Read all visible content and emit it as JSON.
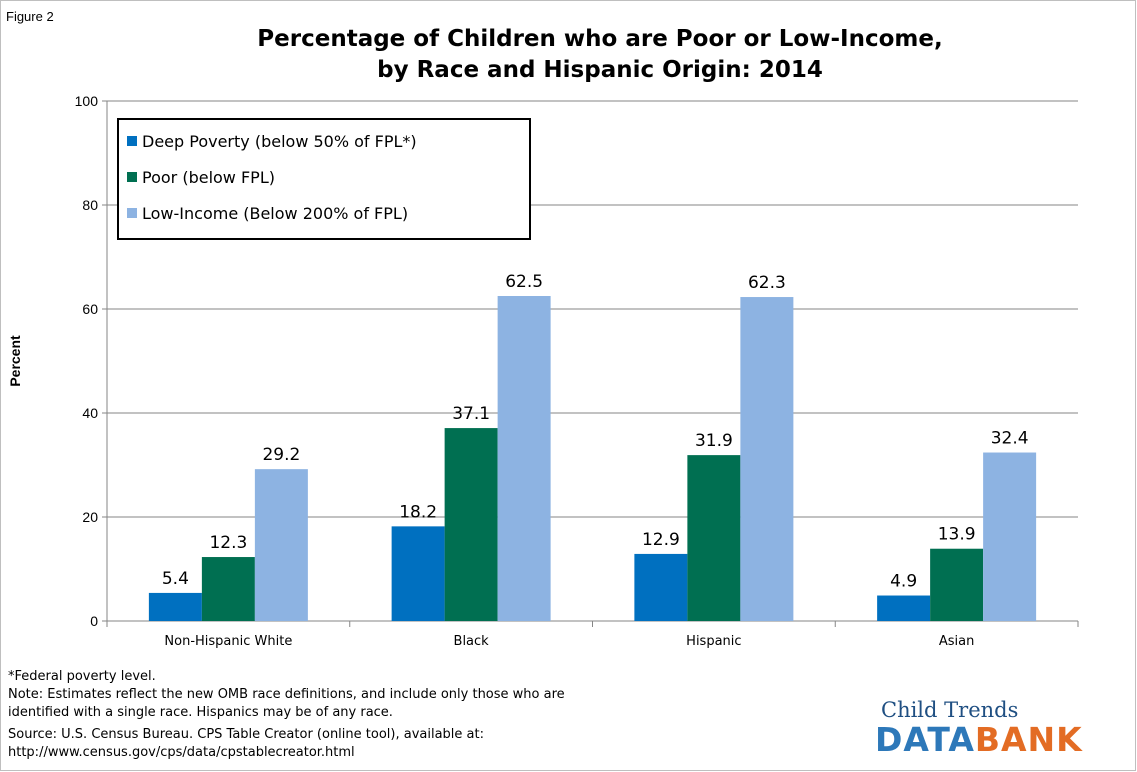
{
  "figure_label": "Figure 2",
  "title_lines": [
    "Percentage of Children who are Poor or Low-Income,",
    "by Race and Hispanic Origin: 2014"
  ],
  "notes": {
    "footnote": "*Federal poverty level.",
    "note_line1": "Note: Estimates reflect the new OMB race definitions, and include only those who are",
    "note_line2": "identified with a single race. Hispanics may be of any race.",
    "source_line1": "Source: U.S. Census Bureau. CPS Table Creator (online tool), available at:",
    "source_line2": "http://www.census.gov/cps/data/cpstablecreator.html"
  },
  "logo": {
    "top": "Child Trends",
    "part1": "DATA",
    "part2": "BANK"
  },
  "colors": {
    "deep_poverty": "#0070c0",
    "poor": "#006f51",
    "low_income": "#8db3e2",
    "grid": "#868686"
  },
  "chart_data": {
    "type": "bar",
    "title": "Percentage of Children who are Poor or Low-Income, by Race and Hispanic Origin: 2014",
    "categories": [
      "Non-Hispanic White",
      "Black",
      "Hispanic",
      "Asian"
    ],
    "series": [
      {
        "name": "Deep Poverty (below 50% of FPL*)",
        "values": [
          5.4,
          18.2,
          12.9,
          4.9
        ]
      },
      {
        "name": "Poor (below FPL)",
        "values": [
          12.3,
          37.1,
          31.9,
          13.9
        ]
      },
      {
        "name": "Low-Income (Below 200% of FPL)",
        "values": [
          29.2,
          62.5,
          62.3,
          32.4
        ]
      }
    ],
    "xlabel": "",
    "ylabel": "Percent",
    "ylim": [
      0,
      100
    ],
    "yticks": [
      0,
      20,
      40,
      60,
      80,
      100
    ],
    "grid": true,
    "legend": "top-left"
  }
}
